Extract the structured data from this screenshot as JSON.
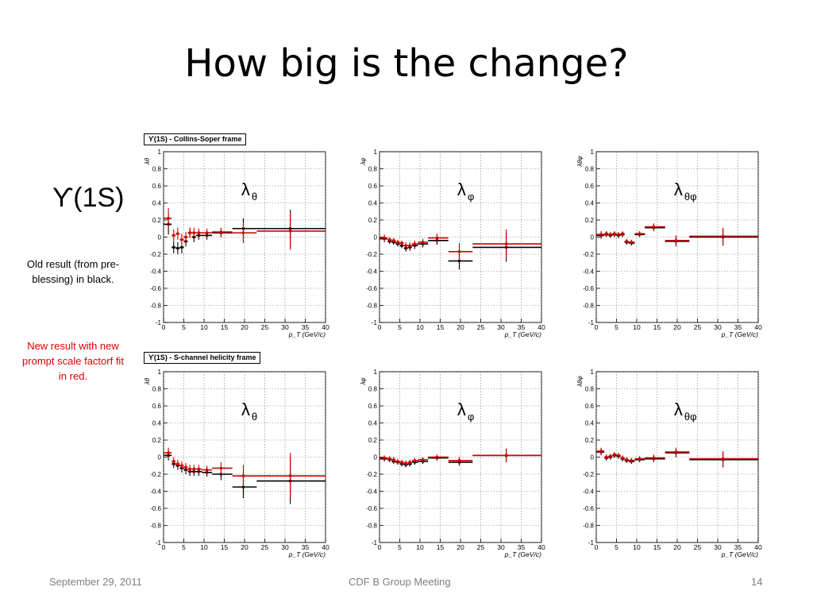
{
  "slide": {
    "title": "How big is the change?",
    "state_label": "ϒ(1S)",
    "old_note": "Old result (from pre-blessing) in black.",
    "new_note": "New result  with new prompt scale factorf fit in red.",
    "frame_cs": "ϒ(1S) - Collins-Soper frame",
    "frame_hx": "ϒ(1S) - S-channel helicity frame",
    "footer_date": "September 29, 2011",
    "footer_meeting": "CDF B Group Meeting",
    "footer_page": "14"
  },
  "colors": {
    "old": "#000000",
    "new": "#cc0000",
    "grid": "#777777"
  },
  "chart_data": [
    {
      "type": "scatter",
      "frame": "Collins-Soper",
      "param": "λθ",
      "label_main": "λ",
      "label_sub": "θ",
      "ylabel": "λθ",
      "xlabel": "p_T  (GeV/c)",
      "xlim": [
        0,
        40
      ],
      "ylim": [
        -1,
        1
      ],
      "xticks": [
        0,
        5,
        10,
        15,
        20,
        25,
        30,
        35,
        40
      ],
      "yticks": [
        -1,
        -0.8,
        -0.6,
        -0.4,
        -0.2,
        0,
        0.2,
        0.4,
        0.6,
        0.8,
        1
      ],
      "bins": [
        [
          0,
          2
        ],
        [
          2,
          3
        ],
        [
          3,
          4
        ],
        [
          4,
          5
        ],
        [
          5,
          6
        ],
        [
          6,
          7
        ],
        [
          7,
          8
        ],
        [
          8,
          9.5
        ],
        [
          9.5,
          12
        ],
        [
          12,
          17
        ],
        [
          17,
          23
        ],
        [
          23,
          40
        ]
      ],
      "centers": [
        1.2,
        2.5,
        3.5,
        4.5,
        5.5,
        6.5,
        7.5,
        8.7,
        10.7,
        14.2,
        19.7,
        31.3
      ],
      "old_values": [
        0.15,
        -0.12,
        -0.13,
        -0.12,
        -0.05,
        0.05,
        0.0,
        0.02,
        0.02,
        0.05,
        0.1,
        0.1
      ],
      "new_values": [
        0.22,
        0.02,
        0.04,
        -0.03,
        0.0,
        0.05,
        0.05,
        0.05,
        0.05,
        0.06,
        0.05,
        0.07
      ],
      "errors": [
        0.12,
        0.07,
        0.07,
        0.07,
        0.06,
        0.06,
        0.06,
        0.05,
        0.05,
        0.05,
        0.12,
        0.22
      ]
    },
    {
      "type": "scatter",
      "frame": "Collins-Soper",
      "param": "λφ",
      "label_main": "λ",
      "label_sub": "φ",
      "ylabel": "λφ",
      "xlabel": "p_T  (GeV/c)",
      "xlim": [
        0,
        40
      ],
      "ylim": [
        -1,
        1
      ],
      "xticks": [
        0,
        5,
        10,
        15,
        20,
        25,
        30,
        35,
        40
      ],
      "yticks": [
        -1,
        -0.8,
        -0.6,
        -0.4,
        -0.2,
        0,
        0.2,
        0.4,
        0.6,
        0.8,
        1
      ],
      "bins": [
        [
          0,
          2
        ],
        [
          2,
          3
        ],
        [
          3,
          4
        ],
        [
          4,
          5
        ],
        [
          5,
          6
        ],
        [
          6,
          7
        ],
        [
          7,
          8
        ],
        [
          8,
          9.5
        ],
        [
          9.5,
          12
        ],
        [
          12,
          17
        ],
        [
          17,
          23
        ],
        [
          23,
          40
        ]
      ],
      "centers": [
        1.2,
        2.5,
        3.5,
        4.5,
        5.5,
        6.5,
        7.5,
        8.7,
        10.7,
        14.2,
        19.7,
        31.3
      ],
      "old_values": [
        -0.02,
        -0.05,
        -0.06,
        -0.08,
        -0.1,
        -0.13,
        -0.12,
        -0.1,
        -0.08,
        -0.04,
        -0.28,
        -0.12
      ],
      "new_values": [
        -0.01,
        -0.03,
        -0.04,
        -0.06,
        -0.07,
        -0.1,
        -0.1,
        -0.08,
        -0.06,
        -0.01,
        -0.17,
        -0.08
      ],
      "errors": [
        0.04,
        0.03,
        0.03,
        0.03,
        0.03,
        0.04,
        0.04,
        0.04,
        0.04,
        0.05,
        0.1,
        0.17
      ]
    },
    {
      "type": "scatter",
      "frame": "Collins-Soper",
      "param": "λθφ",
      "label_main": "λ",
      "label_sub": "θφ",
      "ylabel": "λθφ",
      "xlabel": "p_T  (GeV/c)",
      "xlim": [
        0,
        40
      ],
      "ylim": [
        -1,
        1
      ],
      "xticks": [
        0,
        5,
        10,
        15,
        20,
        25,
        30,
        35,
        40
      ],
      "yticks": [
        -1,
        -0.8,
        -0.6,
        -0.4,
        -0.2,
        0,
        0.2,
        0.4,
        0.6,
        0.8,
        1
      ],
      "bins": [
        [
          0,
          2
        ],
        [
          2,
          3
        ],
        [
          3,
          4
        ],
        [
          4,
          5
        ],
        [
          5,
          6
        ],
        [
          6,
          7
        ],
        [
          7,
          8
        ],
        [
          8,
          9.5
        ],
        [
          9.5,
          12
        ],
        [
          12,
          17
        ],
        [
          17,
          23
        ],
        [
          23,
          40
        ]
      ],
      "centers": [
        1.2,
        2.5,
        3.5,
        4.5,
        5.5,
        6.5,
        7.5,
        8.7,
        10.7,
        14.2,
        19.7,
        31.3
      ],
      "old_values": [
        0.02,
        0.03,
        0.02,
        0.03,
        0.02,
        0.03,
        -0.06,
        -0.07,
        0.03,
        0.11,
        -0.05,
        0.0
      ],
      "new_values": [
        0.03,
        0.04,
        0.03,
        0.04,
        0.03,
        0.04,
        -0.05,
        -0.06,
        0.04,
        0.12,
        -0.04,
        0.01
      ],
      "errors": [
        0.04,
        0.03,
        0.03,
        0.03,
        0.03,
        0.03,
        0.03,
        0.03,
        0.03,
        0.04,
        0.06,
        0.1
      ]
    },
    {
      "type": "scatter",
      "frame": "S-channel helicity",
      "param": "λθ",
      "label_main": "λ",
      "label_sub": "θ",
      "ylabel": "λθ",
      "xlabel": "p_T  (GeV/c)",
      "xlim": [
        0,
        40
      ],
      "ylim": [
        -1,
        1
      ],
      "xticks": [
        0,
        5,
        10,
        15,
        20,
        25,
        30,
        35,
        40
      ],
      "yticks": [
        -1,
        -0.8,
        -0.6,
        -0.4,
        -0.2,
        0,
        0.2,
        0.4,
        0.6,
        0.8,
        1
      ],
      "bins": [
        [
          0,
          2
        ],
        [
          2,
          3
        ],
        [
          3,
          4
        ],
        [
          4,
          5
        ],
        [
          5,
          6
        ],
        [
          6,
          7
        ],
        [
          7,
          8
        ],
        [
          8,
          9.5
        ],
        [
          9.5,
          12
        ],
        [
          12,
          17
        ],
        [
          17,
          23
        ],
        [
          23,
          40
        ]
      ],
      "centers": [
        1.2,
        2.5,
        3.5,
        4.5,
        5.5,
        6.5,
        7.5,
        8.7,
        10.7,
        14.2,
        19.7,
        31.3
      ],
      "old_values": [
        0.02,
        -0.08,
        -0.1,
        -0.13,
        -0.15,
        -0.17,
        -0.17,
        -0.17,
        -0.18,
        -0.2,
        -0.35,
        -0.28
      ],
      "new_values": [
        0.05,
        -0.05,
        -0.08,
        -0.1,
        -0.12,
        -0.14,
        -0.14,
        -0.14,
        -0.15,
        -0.13,
        -0.22,
        -0.22
      ],
      "errors": [
        0.06,
        0.05,
        0.05,
        0.05,
        0.05,
        0.05,
        0.05,
        0.05,
        0.05,
        0.07,
        0.13,
        0.27
      ]
    },
    {
      "type": "scatter",
      "frame": "S-channel helicity",
      "param": "λφ",
      "label_main": "λ",
      "label_sub": "φ",
      "ylabel": "λφ",
      "xlabel": "p_T  (GeV/c)",
      "xlim": [
        0,
        40
      ],
      "ylim": [
        -1,
        1
      ],
      "xticks": [
        0,
        5,
        10,
        15,
        20,
        25,
        30,
        35,
        40
      ],
      "yticks": [
        -1,
        -0.8,
        -0.6,
        -0.4,
        -0.2,
        0,
        0.2,
        0.4,
        0.6,
        0.8,
        1
      ],
      "bins": [
        [
          0,
          2
        ],
        [
          2,
          3
        ],
        [
          3,
          4
        ],
        [
          4,
          5
        ],
        [
          5,
          6
        ],
        [
          6,
          7
        ],
        [
          7,
          8
        ],
        [
          8,
          9.5
        ],
        [
          9.5,
          12
        ],
        [
          12,
          17
        ],
        [
          17,
          23
        ],
        [
          23,
          40
        ]
      ],
      "centers": [
        1.2,
        2.5,
        3.5,
        4.5,
        5.5,
        6.5,
        7.5,
        8.7,
        10.7,
        14.2,
        19.7,
        31.3
      ],
      "old_values": [
        -0.02,
        -0.03,
        -0.05,
        -0.06,
        -0.08,
        -0.09,
        -0.08,
        -0.06,
        -0.05,
        -0.01,
        -0.06,
        0.02
      ],
      "new_values": [
        -0.01,
        -0.02,
        -0.03,
        -0.05,
        -0.06,
        -0.07,
        -0.06,
        -0.04,
        -0.03,
        0.0,
        -0.04,
        0.02
      ],
      "errors": [
        0.03,
        0.03,
        0.03,
        0.03,
        0.03,
        0.03,
        0.03,
        0.03,
        0.03,
        0.03,
        0.04,
        0.08
      ]
    },
    {
      "type": "scatter",
      "frame": "S-channel helicity",
      "param": "λθφ",
      "label_main": "λ",
      "label_sub": "θφ",
      "ylabel": "λθφ",
      "xlabel": "p_T  (GeV/c)",
      "xlim": [
        0,
        40
      ],
      "ylim": [
        -1,
        1
      ],
      "xticks": [
        0,
        5,
        10,
        15,
        20,
        25,
        30,
        35,
        40
      ],
      "yticks": [
        -1,
        -0.8,
        -0.6,
        -0.4,
        -0.2,
        0,
        0.2,
        0.4,
        0.6,
        0.8,
        1
      ],
      "bins": [
        [
          0,
          2
        ],
        [
          2,
          3
        ],
        [
          3,
          4
        ],
        [
          4,
          5
        ],
        [
          5,
          6
        ],
        [
          6,
          7
        ],
        [
          7,
          8
        ],
        [
          8,
          9.5
        ],
        [
          9.5,
          12
        ],
        [
          12,
          17
        ],
        [
          17,
          23
        ],
        [
          23,
          40
        ]
      ],
      "centers": [
        1.2,
        2.5,
        3.5,
        4.5,
        5.5,
        6.5,
        7.5,
        8.7,
        10.7,
        14.2,
        19.7,
        31.3
      ],
      "old_values": [
        0.06,
        -0.01,
        0.0,
        0.02,
        0.01,
        -0.02,
        -0.04,
        -0.05,
        -0.03,
        -0.02,
        0.05,
        -0.03
      ],
      "new_values": [
        0.07,
        0.0,
        0.01,
        0.03,
        0.02,
        -0.01,
        -0.03,
        -0.04,
        -0.02,
        -0.01,
        0.06,
        -0.02
      ],
      "errors": [
        0.04,
        0.03,
        0.03,
        0.03,
        0.03,
        0.03,
        0.03,
        0.03,
        0.03,
        0.04,
        0.05,
        0.09
      ]
    }
  ]
}
